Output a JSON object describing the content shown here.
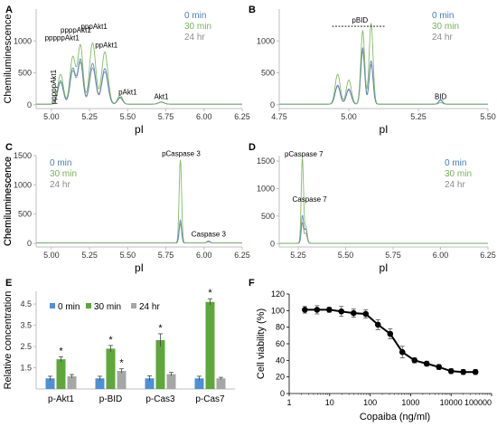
{
  "colors": {
    "series_0": "#4a7ebb",
    "series_30": "#77b255",
    "series_24": "#8c8c8c",
    "bar_0": "#4f8fd6",
    "bar_30": "#5fa73a",
    "bar_24": "#a6a6a6",
    "line_f": "#000000"
  },
  "chart_data": [
    {
      "panel": "A",
      "type": "line",
      "xlabel": "pI",
      "ylabel": "Chemiluminescence",
      "xlim": [
        4.9,
        6.25
      ],
      "ylim": [
        -60,
        1500
      ],
      "xticks": [
        "5.00",
        "5.25",
        "5.50",
        "5.75",
        "6.00",
        "6.25"
      ],
      "yticks": [
        "0",
        "500",
        "1000"
      ],
      "legend": [
        "0 min",
        "30 min",
        "24 hr"
      ],
      "legend_position": "top-right",
      "annotations": [
        {
          "text": "pppppAkt1",
          "x": 5.07,
          "y": 1010
        },
        {
          "text": "ppppAkt1",
          "x": 5.16,
          "y": 1130
        },
        {
          "text": "pppAkt1",
          "x": 5.28,
          "y": 1190
        },
        {
          "text": "ppAkt1",
          "x": 5.36,
          "y": 900
        },
        {
          "text": "pAkt1",
          "x": 5.5,
          "y": 160
        },
        {
          "text": "Akt1",
          "x": 5.72,
          "y": 90
        },
        {
          "text": "pppppAkt1",
          "x": 5.03,
          "y": 280,
          "vertical": true
        }
      ],
      "peaks": [
        {
          "pos": 5.06,
          "width": 0.018,
          "heights": [
            370,
            470,
            340
          ]
        },
        {
          "pos": 5.14,
          "width": 0.018,
          "heights": [
            560,
            740,
            520
          ]
        },
        {
          "pos": 5.19,
          "width": 0.017,
          "heights": [
            700,
            920,
            650
          ]
        },
        {
          "pos": 5.27,
          "width": 0.02,
          "heights": [
            640,
            960,
            570
          ]
        },
        {
          "pos": 5.35,
          "width": 0.02,
          "heights": [
            560,
            820,
            510
          ]
        },
        {
          "pos": 5.45,
          "width": 0.016,
          "heights": [
            110,
            140,
            100
          ]
        },
        {
          "pos": 5.72,
          "width": 0.02,
          "heights": [
            35,
            30,
            30
          ]
        }
      ]
    },
    {
      "panel": "B",
      "type": "line",
      "xlabel": "pI",
      "ylabel": "",
      "xlim": [
        4.75,
        5.5
      ],
      "ylim": [
        -60,
        1500
      ],
      "xticks": [
        "4.75",
        "5.00",
        "5.25",
        "5.50"
      ],
      "yticks": [
        "0",
        "500",
        "1000"
      ],
      "legend": [
        "0 min",
        "30 min",
        "24 hr"
      ],
      "legend_position": "top-right",
      "annotations": [
        {
          "text": "pBID",
          "x": 5.04,
          "y": 1290
        },
        {
          "text": "BID",
          "x": 5.33,
          "y": 90
        }
      ],
      "peaks": [
        {
          "pos": 4.96,
          "width": 0.009,
          "heights": [
            300,
            470,
            280
          ]
        },
        {
          "pos": 5.0,
          "width": 0.009,
          "heights": [
            240,
            380,
            220
          ]
        },
        {
          "pos": 5.05,
          "width": 0.007,
          "heights": [
            880,
            1150,
            830
          ]
        },
        {
          "pos": 5.08,
          "width": 0.007,
          "heights": [
            680,
            1270,
            620
          ]
        },
        {
          "pos": 5.33,
          "width": 0.007,
          "heights": [
            70,
            25,
            60
          ]
        }
      ]
    },
    {
      "panel": "C",
      "type": "line",
      "xlabel": "pI",
      "ylabel": "Chemiluminescence",
      "xlim": [
        4.9,
        6.25
      ],
      "ylim": [
        -60,
        1500
      ],
      "xticks": [
        "5.00",
        "5.25",
        "5.50",
        "5.75",
        "6.00",
        "6.25"
      ],
      "yticks": [
        "0",
        "500",
        "1000",
        "1500"
      ],
      "legend": [
        "0 min",
        "30 min",
        "24 hr"
      ],
      "legend_position": "top-left",
      "annotations": [
        {
          "text": "pCaspase 3",
          "x": 5.85,
          "y": 1490
        },
        {
          "text": "Caspase 3",
          "x": 6.03,
          "y": 120
        }
      ],
      "peaks": [
        {
          "pos": 5.845,
          "width": 0.008,
          "heights": [
            390,
            1420,
            330
          ]
        },
        {
          "pos": 6.03,
          "width": 0.01,
          "heights": [
            35,
            20,
            30
          ]
        }
      ]
    },
    {
      "panel": "D",
      "type": "line",
      "xlabel": "pI",
      "ylabel": "Chemiluminescence",
      "xlim": [
        5.15,
        6.25
      ],
      "ylim": [
        -60,
        1600
      ],
      "xticks": [
        "5.25",
        "5.50",
        "5.75",
        "6.00",
        "6.25"
      ],
      "yticks": [
        "0",
        "500",
        "1000",
        "1500"
      ],
      "legend": [
        "0 min",
        "30 min",
        "24 hr"
      ],
      "legend_position": "top-right",
      "annotations": [
        {
          "text": "pCaspase 7",
          "x": 5.28,
          "y": 1580
        },
        {
          "text": "Caspase 7",
          "x": 5.31,
          "y": 760
        }
      ],
      "peaks": [
        {
          "pos": 5.272,
          "width": 0.006,
          "heights": [
            500,
            1540,
            370
          ]
        },
        {
          "pos": 5.29,
          "width": 0.007,
          "heights": [
            260,
            300,
            180
          ]
        }
      ]
    },
    {
      "panel": "E",
      "type": "bar",
      "ylabel": "Relative concentration",
      "ylim": [
        0.5,
        5.1
      ],
      "yticks": [
        "1.5",
        "2.5",
        "3.5",
        "4.5"
      ],
      "categories": [
        "p-Akt1",
        "p-BID",
        "p-Cas3",
        "p-Cas7"
      ],
      "legend_position": "top",
      "series": [
        {
          "name": "0 min",
          "values": [
            1.0,
            1.0,
            1.0,
            1.0
          ],
          "errors": [
            0.1,
            0.1,
            0.12,
            0.1
          ]
        },
        {
          "name": "30 min",
          "values": [
            1.9,
            2.4,
            2.8,
            4.6
          ],
          "errors": [
            0.12,
            0.15,
            0.3,
            0.15
          ]
        },
        {
          "name": "24 hr",
          "values": [
            1.1,
            1.35,
            1.2,
            1.0
          ],
          "errors": [
            0.08,
            0.1,
            0.08,
            0.05
          ]
        }
      ],
      "significance": [
        {
          "category": 0,
          "series": 1,
          "mark": "*"
        },
        {
          "category": 1,
          "series": 1,
          "mark": "*"
        },
        {
          "category": 1,
          "series": 2,
          "mark": "*"
        },
        {
          "category": 2,
          "series": 1,
          "mark": "*"
        },
        {
          "category": 3,
          "series": 1,
          "mark": "*"
        }
      ]
    },
    {
      "panel": "F",
      "type": "line",
      "xlabel": "Copaiba (ng/ml)",
      "ylabel": "Cell viability (%)",
      "xscale": "log",
      "xlim": [
        1,
        100000
      ],
      "ylim": [
        0,
        120
      ],
      "xticks": [
        "1",
        "10",
        "100",
        "1000",
        "10000",
        "100000"
      ],
      "yticks": [
        "0",
        "20",
        "40",
        "60",
        "80",
        "100",
        "120"
      ],
      "x": [
        2.44,
        4.88,
        9.77,
        19.5,
        39.1,
        78.1,
        156,
        313,
        625,
        1250,
        2500,
        5000,
        10000,
        20000,
        40000
      ],
      "y": [
        101,
        101,
        101,
        99,
        97,
        96,
        83,
        72,
        50,
        40,
        36,
        32,
        27,
        26,
        26
      ],
      "errors": [
        4,
        5,
        3,
        6,
        5,
        5,
        6,
        6,
        7,
        3,
        3,
        3,
        3,
        3,
        3
      ]
    }
  ]
}
